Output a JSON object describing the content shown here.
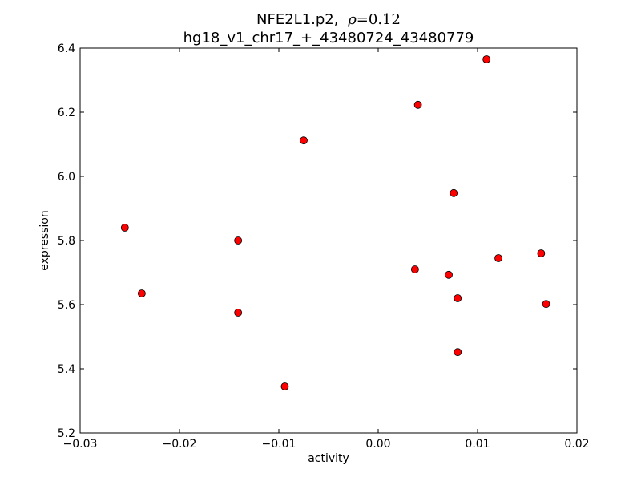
{
  "chart_data": {
    "type": "scatter",
    "title": {
      "gene": "NFE2L1.p2,",
      "rho_symbol": "ρ",
      "rho_value": "=0.12",
      "line2": "hg18_v1_chr17_+_43480724_43480779"
    },
    "xlabel": "activity",
    "ylabel": "expression",
    "xlim": [
      -0.03,
      0.02
    ],
    "ylim": [
      5.2,
      6.4
    ],
    "xticks": [
      -0.03,
      -0.02,
      -0.01,
      0.0,
      0.01,
      0.02
    ],
    "xtick_labels": [
      "−0.03",
      "−0.02",
      "−0.01",
      "0.00",
      "0.01",
      "0.02"
    ],
    "yticks": [
      5.2,
      5.4,
      5.6,
      5.8,
      6.0,
      6.2,
      6.4
    ],
    "ytick_labels": [
      "5.2",
      "5.4",
      "5.6",
      "5.8",
      "6.0",
      "6.2",
      "6.4"
    ],
    "grid": false,
    "marker_color": "#ff0000",
    "marker_edge": "#000000",
    "points": [
      {
        "x": -0.0255,
        "y": 5.84
      },
      {
        "x": -0.0238,
        "y": 5.635
      },
      {
        "x": -0.0141,
        "y": 5.8
      },
      {
        "x": -0.0141,
        "y": 5.575
      },
      {
        "x": -0.0094,
        "y": 5.345
      },
      {
        "x": -0.0075,
        "y": 6.112
      },
      {
        "x": 0.0037,
        "y": 5.71
      },
      {
        "x": 0.004,
        "y": 6.223
      },
      {
        "x": 0.0071,
        "y": 5.693
      },
      {
        "x": 0.0076,
        "y": 5.948
      },
      {
        "x": 0.008,
        "y": 5.62
      },
      {
        "x": 0.008,
        "y": 5.452
      },
      {
        "x": 0.0109,
        "y": 6.365
      },
      {
        "x": 0.0121,
        "y": 5.745
      },
      {
        "x": 0.0164,
        "y": 5.76
      },
      {
        "x": 0.0169,
        "y": 5.602
      }
    ]
  }
}
